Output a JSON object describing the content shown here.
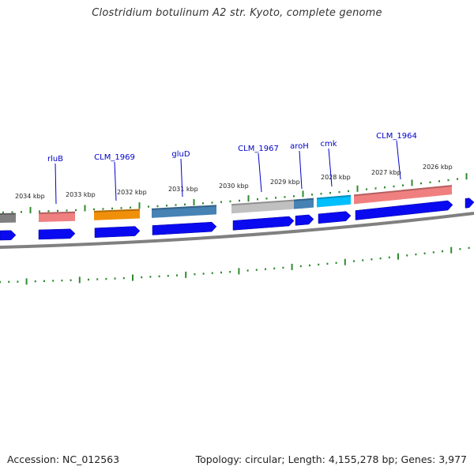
{
  "title": "Clostridium botulinum A2 str. Kyoto, complete genome",
  "footer": {
    "accession": "Accession: NC_012563",
    "topology": "Topology: circular; Length: 4,155,278 bp; Genes: 3,977"
  },
  "colors": {
    "tick": "#2e8b2e",
    "backbone": "#808080",
    "cds": "#0a0af0",
    "label": "#0000c8",
    "feature_pink": "#f08080",
    "feature_orange": "#f0900a",
    "feature_steelblue": "#4682b4",
    "feature_grey": "#c0c0c0",
    "feature_cyan": "#00bfff",
    "feature_darkgrey": "#808080"
  },
  "kbp_labels": [
    "2034 kbp",
    "2033 kbp",
    "2032 kbp",
    "2031 kbp",
    "2030 kbp",
    "2029 kbp",
    "2028 kbp",
    "2027 kbp",
    "2026 kbp"
  ],
  "genes": [
    "rluB",
    "CLM_1969",
    "gluD",
    "CLM_1967",
    "aroH",
    "cmk",
    "CLM_1964"
  ]
}
